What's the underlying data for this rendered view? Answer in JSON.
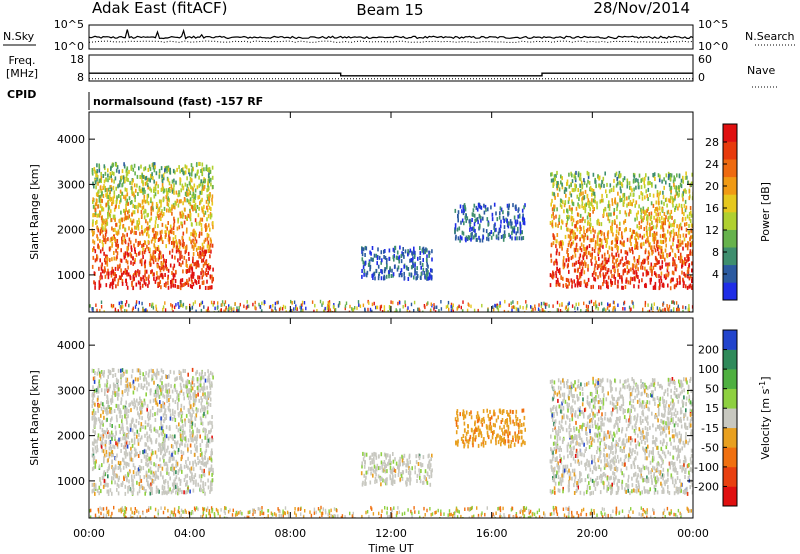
{
  "header": {
    "title": "Adak East (fitACF)",
    "beam": "Beam 15",
    "date": "28/Nov/2014"
  },
  "noise_panel": {
    "left_label": "N.Sky",
    "right_label": "N.Search",
    "left_ticks": [
      "10^5",
      "10^0"
    ],
    "right_ticks": [
      "10^5",
      "10^0"
    ]
  },
  "freq_panel": {
    "left_label_line1": "Freq.",
    "left_label_line2": "[MHz]",
    "left_ticks": [
      "18",
      "8"
    ],
    "right_label": "Nave",
    "right_ticks": [
      "60",
      "0"
    ],
    "frequency_mhz": [
      [
        0,
        11
      ],
      [
        10,
        11
      ],
      [
        10,
        10
      ],
      [
        18,
        10
      ],
      [
        18,
        11
      ],
      [
        24,
        11
      ]
    ],
    "nave": [
      [
        0,
        5
      ],
      [
        24,
        5
      ]
    ]
  },
  "cpid": {
    "label": "CPID",
    "value": "normalsound (fast) -157 RF"
  },
  "chart_data": [
    {
      "type": "heatmap",
      "panel": "power",
      "xlabel": "",
      "ylabel": "Slant Range [km]",
      "xlim": [
        0,
        24
      ],
      "ylim": [
        180,
        4600
      ],
      "y_ticks": [
        1000,
        2000,
        3000,
        4000
      ],
      "colorbar_label": "Power [dB]",
      "colorbar_ticks": [
        4,
        8,
        12,
        16,
        20,
        24,
        28
      ],
      "colorbar_colors": [
        "#1f2de6",
        "#2b5aa0",
        "#3e8e6e",
        "#66b24c",
        "#b0d030",
        "#e6c81e",
        "#f09a14",
        "#ee6a10",
        "#e83a0c",
        "#e01010"
      ],
      "regions": [
        {
          "x_start": 0.1,
          "x_end": 4.9,
          "range_low": 750,
          "range_high": 3500,
          "level": "strong"
        },
        {
          "x_start": 10.8,
          "x_end": 13.6,
          "range_low": 950,
          "range_high": 1650,
          "level": "weak"
        },
        {
          "x_start": 14.5,
          "x_end": 17.3,
          "range_low": 1800,
          "range_high": 2600,
          "level": "weak"
        },
        {
          "x_start": 18.3,
          "x_end": 24.0,
          "range_low": 750,
          "range_high": 3300,
          "level": "strong"
        }
      ]
    },
    {
      "type": "heatmap",
      "panel": "velocity",
      "xlabel": "Time UT",
      "ylabel": "Slant Range [km]",
      "xlim": [
        0,
        24
      ],
      "ylim": [
        180,
        4600
      ],
      "x_ticks": [
        "00:00",
        "04:00",
        "08:00",
        "12:00",
        "16:00",
        "20:00",
        "00:00"
      ],
      "y_ticks": [
        1000,
        2000,
        3000,
        4000
      ],
      "colorbar_label": "Velocity [m s",
      "colorbar_label_superscript": "-1",
      "colorbar_label_end": "]",
      "colorbar_ticks": [
        "200",
        "100",
        "50",
        "15",
        "-15",
        "-50",
        "-100",
        "-200"
      ],
      "colorbar_colors": [
        "#2244cc",
        "#2f8a5a",
        "#4fb040",
        "#8ed040",
        "#c8c8c0",
        "#e8a020",
        "#f07010",
        "#e84010",
        "#e01010"
      ],
      "regions": [
        {
          "x_start": 0.1,
          "x_end": 4.9,
          "range_low": 750,
          "range_high": 3500,
          "dominant": "ground-scatter"
        },
        {
          "x_start": 10.8,
          "x_end": 13.6,
          "range_low": 950,
          "range_high": 1650,
          "dominant": "ground-scatter"
        },
        {
          "x_start": 14.5,
          "x_end": 17.3,
          "range_low": 1800,
          "range_high": 2600,
          "dominant": "-50"
        },
        {
          "x_start": 18.3,
          "x_end": 24.0,
          "range_low": 750,
          "range_high": 3300,
          "dominant": "ground-scatter"
        }
      ]
    }
  ]
}
